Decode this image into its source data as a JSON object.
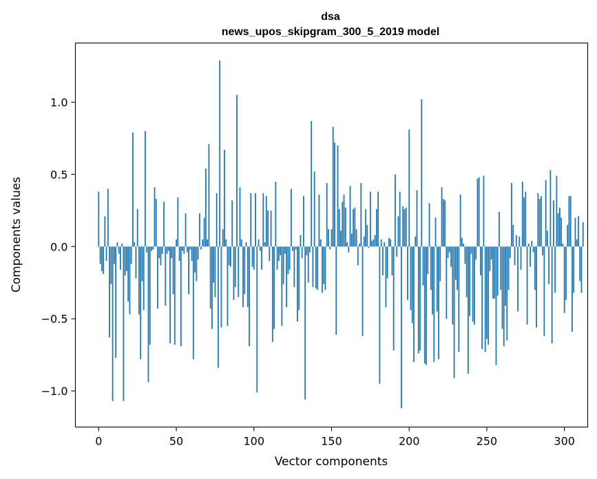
{
  "chart_data": {
    "type": "bar",
    "title": "dsa",
    "subtitle": "news_upos_skipgram_300_5_2019 model",
    "xlabel": "Vector components",
    "ylabel": "Components values",
    "xlim": [
      -15,
      315
    ],
    "ylim": [
      -1.25,
      1.41
    ],
    "x_ticks": [
      {
        "value": 0,
        "label": "0"
      },
      {
        "value": 50,
        "label": "50"
      },
      {
        "value": 100,
        "label": "100"
      },
      {
        "value": 150,
        "label": "150"
      },
      {
        "value": 200,
        "label": "200"
      },
      {
        "value": 250,
        "label": "250"
      },
      {
        "value": 300,
        "label": "300"
      }
    ],
    "y_ticks": [
      {
        "value": -1.0,
        "label": "−1.0"
      },
      {
        "value": -0.5,
        "label": "−0.5"
      },
      {
        "value": 0.0,
        "label": "0.0"
      },
      {
        "value": 0.5,
        "label": "0.5"
      },
      {
        "value": 1.0,
        "label": "1.0"
      }
    ],
    "bar_color": "#1f77b4",
    "grid": false,
    "legend": "none",
    "values": [
      0.38,
      -0.12,
      -0.17,
      -0.19,
      0.21,
      -0.1,
      0.4,
      -0.63,
      -0.26,
      -1.07,
      -0.12,
      -0.77,
      0.03,
      -0.05,
      -0.16,
      0.02,
      -1.07,
      -0.2,
      -0.17,
      -0.38,
      -0.47,
      -0.12,
      0.79,
      0.03,
      -0.22,
      0.26,
      -0.47,
      -0.78,
      -0.24,
      -0.44,
      0.8,
      -0.04,
      -0.94,
      -0.68,
      -0.03,
      -0.02,
      0.41,
      0.33,
      -0.43,
      -0.08,
      -0.13,
      -0.05,
      0.31,
      -0.41,
      -0.05,
      -0.03,
      -0.67,
      -0.08,
      -0.33,
      -0.68,
      0.05,
      0.34,
      -0.1,
      -0.69,
      -0.03,
      -0.05,
      0.23,
      -0.04,
      -0.33,
      -0.02,
      -0.1,
      -0.78,
      -0.18,
      -0.24,
      -0.09,
      0.23,
      -0.02,
      0.05,
      0.2,
      0.54,
      0.05,
      0.71,
      -0.43,
      -0.57,
      -0.25,
      -0.35,
      0.37,
      -0.84,
      1.29,
      -0.56,
      0.12,
      0.67,
      0.05,
      -0.55,
      -0.13,
      -0.14,
      0.32,
      -0.37,
      -0.28,
      1.05,
      -0.35,
      0.41,
      0.05,
      -0.42,
      -0.33,
      0.03,
      -0.42,
      -0.69,
      0.37,
      -0.14,
      -0.16,
      0.37,
      -1.01,
      0.05,
      -0.03,
      -0.16,
      0.37,
      0.03,
      0.35,
      0.25,
      -0.1,
      0.25,
      -0.66,
      -0.57,
      0.45,
      -0.16,
      -0.1,
      -0.06,
      -0.55,
      -0.26,
      -0.05,
      -0.42,
      -0.19,
      -0.16,
      0.4,
      -0.03,
      -0.28,
      -0.02,
      -0.52,
      -0.44,
      0.08,
      -0.08,
      0.35,
      -1.06,
      -0.06,
      -0.25,
      -0.04,
      0.87,
      -0.28,
      0.52,
      -0.29,
      -0.3,
      0.36,
      0.05,
      -0.32,
      -0.26,
      -0.3,
      0.44,
      0.12,
      -0.02,
      0.12,
      0.83,
      0.72,
      -0.61,
      0.7,
      0.26,
      0.11,
      0.31,
      0.36,
      0.27,
      0.03,
      -0.04,
      0.42,
      0.09,
      0.26,
      0.27,
      0.12,
      -0.13,
      0.02,
      0.44,
      -0.62,
      0.07,
      0.26,
      0.15,
      -0.01,
      0.38,
      0.04,
      0.05,
      0.08,
      0.26,
      0.38,
      -0.95,
      0.05,
      -0.2,
      0.03,
      -0.42,
      -0.22,
      0.06,
      0.05,
      -0.2,
      -0.72,
      0.5,
      -0.07,
      0.21,
      0.38,
      -1.12,
      0.28,
      0.26,
      0.27,
      -0.37,
      0.81,
      -0.44,
      -0.53,
      -0.8,
      0.07,
      0.39,
      -0.74,
      -0.72,
      1.02,
      -0.27,
      -0.81,
      -0.82,
      -0.19,
      0.3,
      -0.3,
      -0.47,
      -0.8,
      0.2,
      -0.45,
      -0.78,
      -0.24,
      0.41,
      0.33,
      0.32,
      -0.5,
      -0.08,
      -0.04,
      -0.14,
      -0.54,
      -0.91,
      -0.23,
      -0.3,
      -0.73,
      0.36,
      0.06,
      0.02,
      -0.12,
      -0.35,
      -0.88,
      -0.48,
      -0.05,
      -0.52,
      -0.54,
      -0.09,
      0.47,
      0.48,
      -0.2,
      -0.71,
      0.49,
      -0.73,
      -0.64,
      -0.68,
      -0.17,
      -0.09,
      -0.36,
      -0.36,
      -0.82,
      -0.34,
      0.24,
      -0.3,
      -0.57,
      -0.69,
      -0.41,
      -0.65,
      -0.3,
      -0.08,
      0.44,
      0.15,
      -0.13,
      0.08,
      -0.45,
      0.07,
      -0.16,
      0.45,
      0.34,
      0.38,
      -0.54,
      0.02,
      -0.14,
      0.04,
      -0.04,
      -0.3,
      -0.56,
      0.37,
      0.33,
      0.35,
      -0.06,
      -0.62,
      0.46,
      0.11,
      -0.26,
      0.53,
      -0.67,
      0.32,
      -0.32,
      0.49,
      0.23,
      0.27,
      0.2,
      0.02,
      -0.46,
      -0.37,
      0.15,
      0.35,
      0.35,
      -0.59,
      -0.32,
      0.2,
      0.05,
      0.21,
      -0.24,
      -0.32,
      0.17
    ]
  }
}
